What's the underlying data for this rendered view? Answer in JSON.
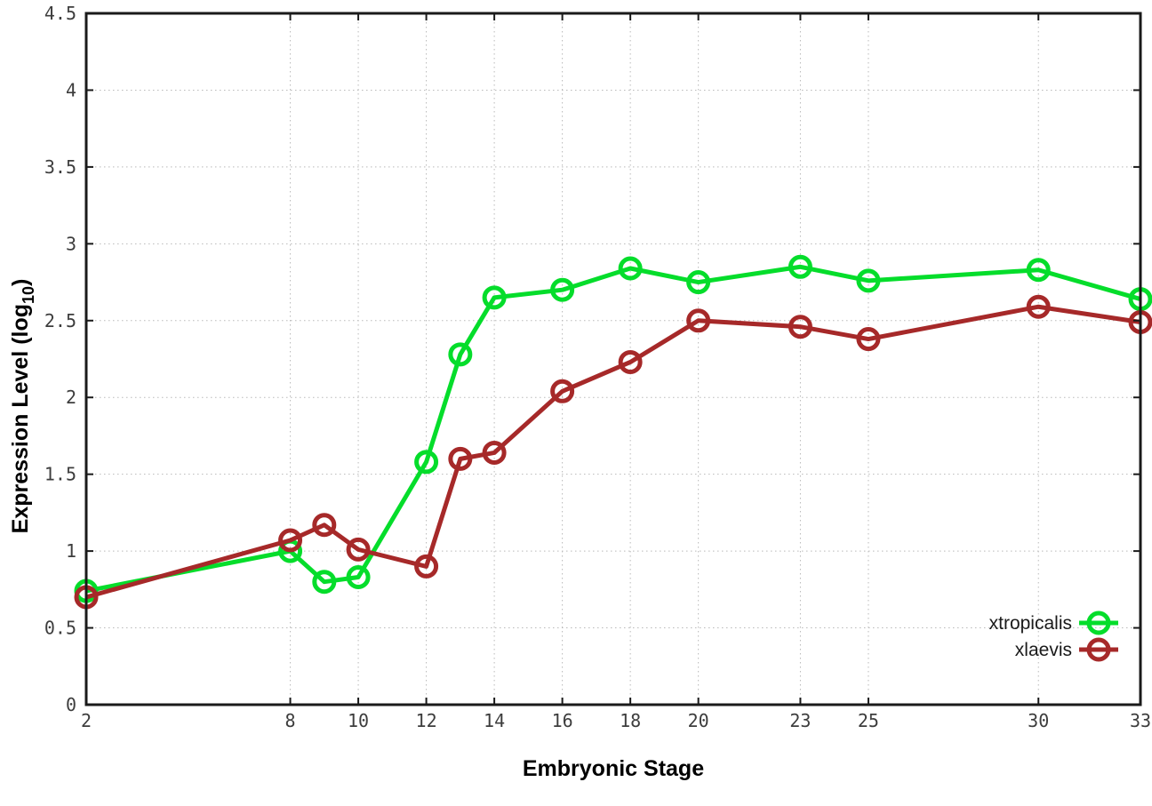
{
  "figure": {
    "ylabel_parts": {
      "main": "Expression Level (log",
      "sub": "10",
      "close": ")"
    }
  },
  "chart_data": {
    "type": "line",
    "title": "",
    "xlabel": "Embryonic Stage",
    "ylabel": "Expression Level (log10)",
    "xlim": [
      2,
      33
    ],
    "ylim": [
      0,
      4.5
    ],
    "xticks": [
      2,
      8,
      10,
      12,
      14,
      16,
      18,
      20,
      23,
      25,
      30,
      33
    ],
    "yticks": [
      0,
      0.5,
      1,
      1.5,
      2,
      2.5,
      3,
      3.5,
      4,
      4.5
    ],
    "grid": true,
    "grid_style": "dotted",
    "legend_position": "inside-bottom-right",
    "axis_color": "#1a1a1a",
    "grid_color": "#b9b9b9",
    "tick_label_color": "#3d3d3d",
    "x": [
      2,
      8,
      9,
      10,
      12,
      13,
      14,
      16,
      18,
      20,
      23,
      25,
      30,
      33
    ],
    "series": [
      {
        "name": "xtropicalis",
        "color": "#05dd2b",
        "marker": "open-circle",
        "values": [
          0.74,
          1.0,
          0.8,
          0.83,
          1.58,
          2.28,
          2.65,
          2.7,
          2.84,
          2.75,
          2.85,
          2.76,
          2.83,
          2.64
        ]
      },
      {
        "name": "xlaevis",
        "color": "#a62929",
        "marker": "open-circle",
        "values": [
          0.7,
          1.07,
          1.17,
          1.01,
          0.9,
          1.6,
          1.64,
          2.04,
          2.23,
          2.5,
          2.46,
          2.38,
          2.59,
          2.49
        ]
      }
    ]
  }
}
